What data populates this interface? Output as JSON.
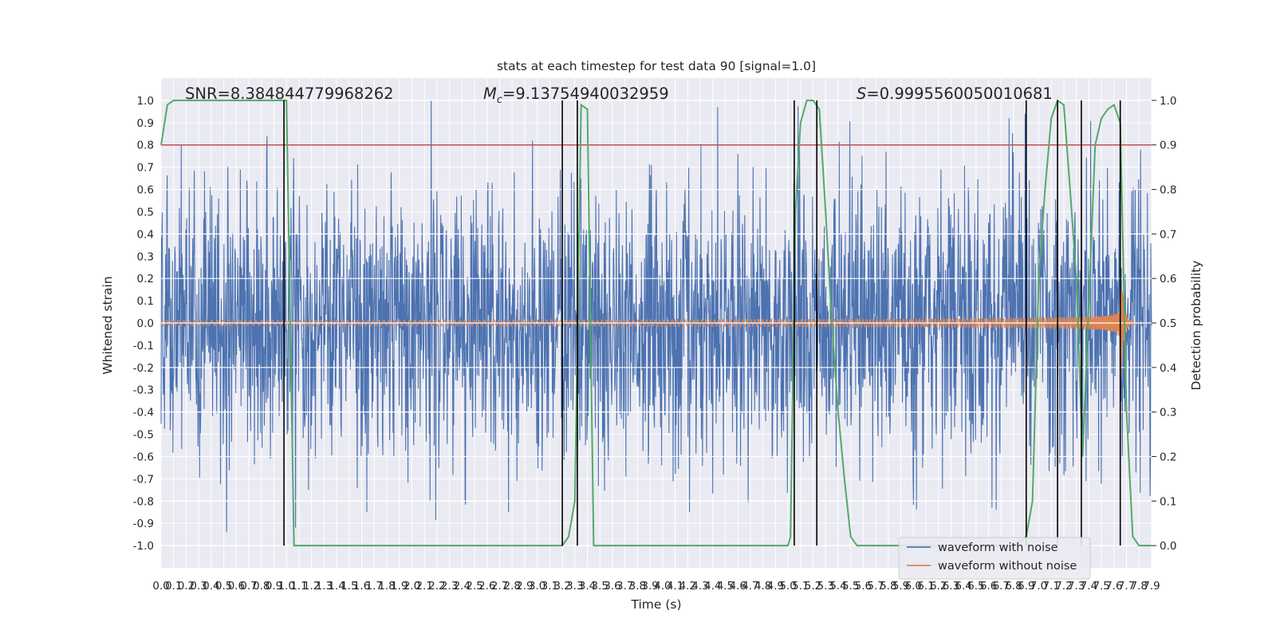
{
  "chart_data": {
    "type": "line",
    "title": "stats at each timestep for test data 90 [signal=1.0]",
    "xlabel": "Time (s)",
    "ylabel": "Whitened strain",
    "y2label": "Detection probability",
    "xlim": [
      0,
      7.9
    ],
    "ylim": [
      -1.1,
      1.1
    ],
    "y2lim": [
      -0.05,
      1.05
    ],
    "x_ticks": [
      "0.0",
      "0.1",
      "0.2",
      "0.3",
      "0.4",
      "0.5",
      "0.6",
      "0.7",
      "0.8",
      "0.9",
      "1.0",
      "1.1",
      "1.2",
      "1.3",
      "1.4",
      "1.5",
      "1.6",
      "1.7",
      "1.8",
      "1.9",
      "2.0",
      "2.1",
      "2.2",
      "2.3",
      "2.4",
      "2.5",
      "2.6",
      "2.7",
      "2.8",
      "2.9",
      "3.0",
      "3.1",
      "3.2",
      "3.3",
      "3.4",
      "3.5",
      "3.6",
      "3.7",
      "3.8",
      "3.9",
      "4.0",
      "4.1",
      "4.2",
      "4.3",
      "4.4",
      "4.5",
      "4.6",
      "4.7",
      "4.8",
      "4.9",
      "5.0",
      "5.1",
      "5.2",
      "5.3",
      "5.4",
      "5.5",
      "5.6",
      "5.7",
      "5.8",
      "5.9",
      "6.0",
      "6.1",
      "6.2",
      "6.3",
      "6.4",
      "6.5",
      "6.6",
      "6.7",
      "6.8",
      "6.9",
      "7.0",
      "7.1",
      "7.2",
      "7.3",
      "7.4",
      "7.5",
      "7.6",
      "7.7",
      "7.8",
      "7.9"
    ],
    "y_ticks": [
      "1.0",
      "0.9",
      "0.8",
      "0.7",
      "0.6",
      "0.5",
      "0.4",
      "0.3",
      "0.2",
      "0.1",
      "0.0",
      "-0.1",
      "-0.2",
      "-0.3",
      "-0.4",
      "-0.5",
      "-0.6",
      "-0.7",
      "-0.8",
      "-0.9",
      "-1.0"
    ],
    "y2_ticks": [
      "1.0",
      "0.9",
      "0.8",
      "0.7",
      "0.6",
      "0.5",
      "0.4",
      "0.3",
      "0.2",
      "0.1",
      "0.0"
    ],
    "annotations": {
      "snr": "SNR=8.384844779968262",
      "mc_symbol": "M",
      "mc_sub": "c",
      "mc_value": "=9.13754940032959",
      "s_symbol": "S",
      "s_value": "=0.9995560050010681"
    },
    "threshold": 0.9,
    "series": [
      {
        "name": "waveform with noise",
        "color": "#4c72b0",
        "amplitude_sigma": 0.3
      },
      {
        "name": "waveform without noise",
        "color": "#dd8452",
        "chirp_start_amp": 0.012,
        "chirp_peak_amp": 0.25,
        "merger_time": 7.65
      },
      {
        "name": "",
        "color": "#55a868",
        "x": [
          0.0,
          0.05,
          0.1,
          0.15,
          0.2,
          0.4,
          0.6,
          0.8,
          0.95,
          1.0,
          1.06,
          1.5,
          2.0,
          2.5,
          3.0,
          3.2,
          3.25,
          3.3,
          3.35,
          3.4,
          3.45,
          3.5,
          3.6,
          4.0,
          4.5,
          5.0,
          5.02,
          5.06,
          5.1,
          5.15,
          5.2,
          5.25,
          5.3,
          5.35,
          5.4,
          5.45,
          5.5,
          5.55,
          5.6,
          5.8,
          6.0,
          6.5,
          6.7,
          6.8,
          6.9,
          6.95,
          7.0,
          7.05,
          7.1,
          7.15,
          7.2,
          7.25,
          7.3,
          7.35,
          7.4,
          7.45,
          7.5,
          7.55,
          7.6,
          7.65,
          7.7,
          7.75,
          7.8,
          7.85,
          7.9
        ],
        "y": [
          0.9,
          0.99,
          1.0,
          1.0,
          1.0,
          1.0,
          1.0,
          1.0,
          1.0,
          1.0,
          0.0,
          0.0,
          0.0,
          0.0,
          0.0,
          0.0,
          0.02,
          0.1,
          0.99,
          0.98,
          0.0,
          0.0,
          0.0,
          0.0,
          0.0,
          0.0,
          0.02,
          0.75,
          0.95,
          1.0,
          1.0,
          0.98,
          0.75,
          0.5,
          0.3,
          0.15,
          0.02,
          0.0,
          0.0,
          0.0,
          0.0,
          0.0,
          0.0,
          0.0,
          0.02,
          0.1,
          0.6,
          0.8,
          0.96,
          1.0,
          0.99,
          0.8,
          0.6,
          0.2,
          0.55,
          0.9,
          0.96,
          0.98,
          0.99,
          0.95,
          0.3,
          0.02,
          0.0,
          0.0,
          0.0
        ]
      }
    ],
    "vlines": [
      0.98,
      3.2,
      3.32,
      5.05,
      5.23,
      6.9,
      7.15,
      7.34,
      7.65
    ],
    "grid": true,
    "legend_placement": "lower-right"
  }
}
